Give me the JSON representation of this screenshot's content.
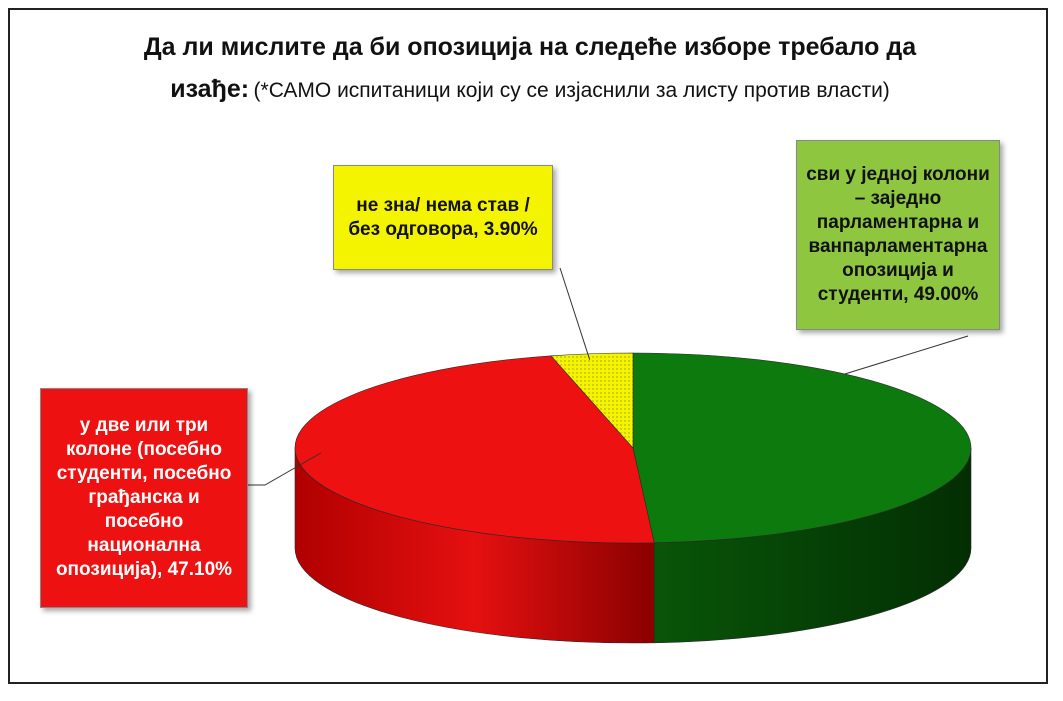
{
  "header": {
    "title_bold_line1": "Да ли мислите да би опозиција на следеће изборе требало да",
    "title_bold_line2": "изађе:",
    "title_note": "(*САМО испитаници који су се изјаснили за листу против власти)"
  },
  "chart_data": {
    "type": "pie",
    "title": "Да ли мислите да би опозиција на следеће изборе требало да изађе: (*САМО испитаници који су се изјаснили за листу против власти)",
    "slices": [
      {
        "key": "green",
        "label": "сви у једној колони – заједно парламентарна и ванпарламентарна опозиција и студенти",
        "value": 49.0,
        "value_text": "49.00%",
        "color": "#0c7a0c",
        "color_dark": "#063f06",
        "label_bg": "#8ec63f"
      },
      {
        "key": "red",
        "label": "у две или три колоне (посебно студенти, посебно грађанска и посебно национална опозиција)",
        "value": 47.1,
        "value_text": "47.10%",
        "color": "#ee1111",
        "color_dark": "#a30000",
        "label_bg": "#ee1111"
      },
      {
        "key": "yellow",
        "label": "не зна/ нема став / без одговора",
        "value": 3.9,
        "value_text": "3.90%",
        "color": "#f4f400",
        "color_dark": "#b5b500",
        "label_bg": "#f4f400"
      }
    ],
    "legend": "none",
    "style": "3d"
  },
  "labels": {
    "yellow_text": "не зна/ нема став / без одговора, 3.90%",
    "green_text": "сви у једној колони – заједно парламентарна и ванпарламентарна опозиција и студенти, 49.00%",
    "red_text": "у две или три колоне (посебно студенти, посебно грађанска и посебно национална опозиција), 47.10%"
  }
}
